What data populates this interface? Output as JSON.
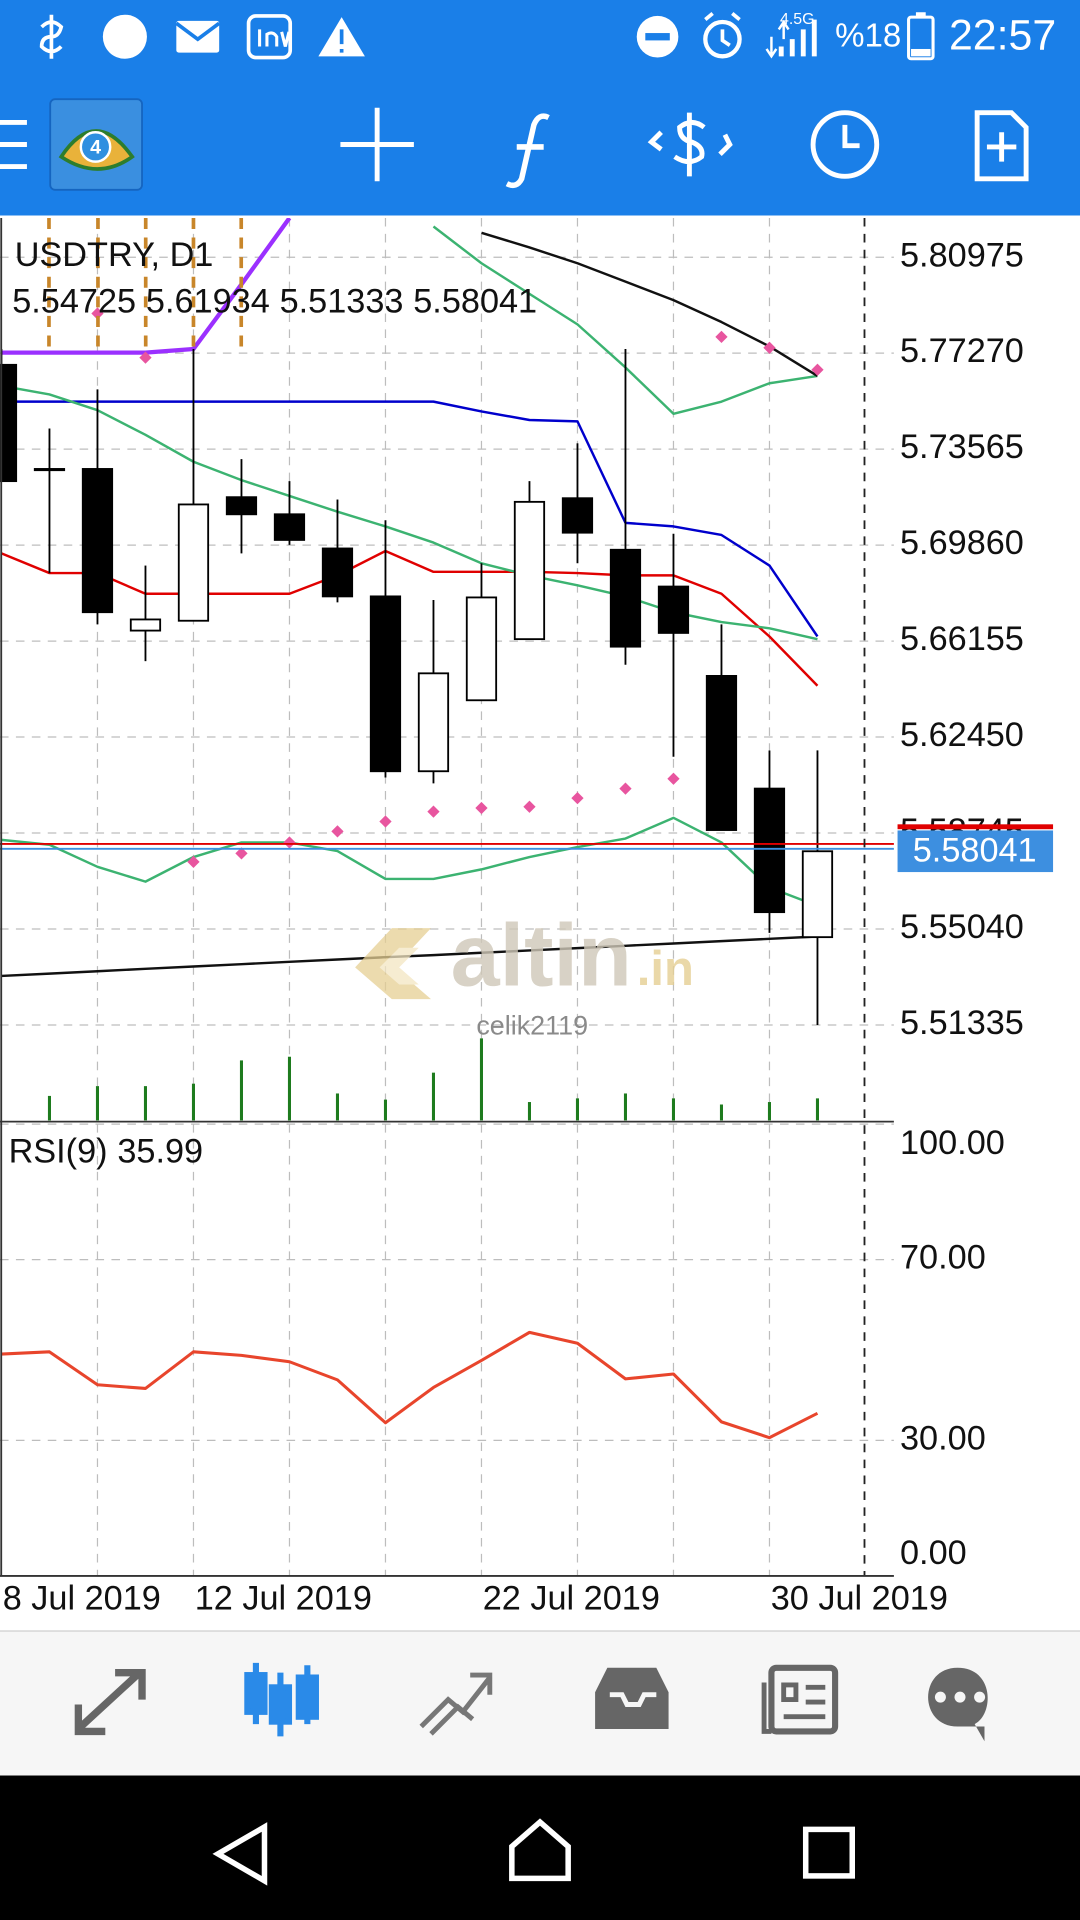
{
  "status_bar": {
    "network": "4.5G",
    "battery": "%18",
    "time": "22:57"
  },
  "app_icon_label": "4",
  "watermark": {
    "brand": "altin",
    "suffix": ".in",
    "user": "celik2119"
  },
  "chart_data": [
    {
      "type": "candlestick",
      "symbol": "USDTRY, D1",
      "categories": [
        "8 Jul 2019",
        null,
        null,
        null,
        "12 Jul 2019",
        null,
        null,
        null,
        null,
        null,
        "22 Jul 2019",
        null,
        null,
        null,
        null,
        null,
        "30 Jul 2019",
        null
      ],
      "open": [
        5.7682,
        5.728,
        5.728,
        5.6656,
        5.6694,
        5.7171,
        5.7105,
        5.6973,
        5.6788,
        5.6113,
        5.6387,
        5.6623,
        5.7167,
        5.6968,
        5.6826,
        5.6481,
        5.6046,
        5.54725
      ],
      "high": [
        5.7743,
        5.7436,
        5.7587,
        5.6907,
        5.7743,
        5.7318,
        5.7233,
        5.7162,
        5.7082,
        5.6774,
        5.6916,
        5.7233,
        5.7379,
        5.7743,
        5.703,
        5.668,
        5.6193,
        5.61934
      ],
      "low": [
        5.7233,
        5.6878,
        5.668,
        5.6538,
        5.6694,
        5.6954,
        5.6987,
        5.6765,
        5.6089,
        5.6066,
        5.6387,
        5.6623,
        5.6916,
        5.6524,
        5.6169,
        5.5886,
        5.5489,
        5.51333
      ],
      "close": [
        5.7233,
        5.728,
        5.6727,
        5.6699,
        5.7143,
        5.7105,
        5.7006,
        5.6788,
        5.6113,
        5.6491,
        5.6784,
        5.7153,
        5.7034,
        5.6594,
        5.6647,
        5.5886,
        5.5569,
        5.58041
      ],
      "bull_color": "#ffffff",
      "bear_color": "#000000",
      "indicators": [
        {
          "color": "#3cb371",
          "values": [
            5.5848,
            5.5829,
            5.5744,
            5.5687,
            5.5782,
            5.5838,
            5.5838,
            5.5805,
            5.5697,
            5.5697,
            5.5734,
            5.5782,
            5.582,
            5.5853,
            5.5933,
            5.5838,
            5.5664,
            5.5593
          ]
        },
        {
          "color": "#111111",
          "values": [
            5.5323,
            5.5332,
            5.5341,
            5.535,
            5.5359,
            5.5368,
            5.5377,
            5.5386,
            5.5395,
            5.5403,
            5.5412,
            5.5421,
            5.543,
            5.5439,
            5.5448,
            5.5457,
            5.5466,
            5.5475
          ]
        },
        {
          "color": "#0000cc",
          "values": [
            5.754,
            5.754,
            5.754,
            5.754,
            5.754,
            5.754,
            5.754,
            5.754,
            5.754,
            5.754,
            5.7502,
            5.7469,
            5.7464,
            5.7072,
            5.7058,
            5.7025,
            5.6907,
            5.6633
          ]
        },
        {
          "color": "#e00000",
          "values": [
            5.6954,
            5.6878,
            5.6878,
            5.6798,
            5.6798,
            5.6798,
            5.6798,
            5.6869,
            5.6963,
            5.6883,
            5.6883,
            5.6883,
            5.6878,
            5.6869,
            5.6869,
            5.6798,
            5.6633,
            5.6443
          ]
        },
        {
          "color": "#3cb371",
          "values": [
            5.7601,
            5.7568,
            5.7507,
            5.7412,
            5.7308,
            5.7237,
            5.7176,
            5.7115,
            5.7058,
            5.6996,
            5.6916,
            5.6869,
            5.6831,
            5.6788,
            5.6727,
            5.6689,
            5.6665,
            5.6623
          ]
        },
        {
          "color": "#3cb371",
          "values": [
            null,
            null,
            null,
            null,
            null,
            null,
            null,
            null,
            null,
            5.8216,
            5.8074,
            5.7956,
            5.7838,
            5.7672,
            5.7493,
            5.754,
            5.7611,
            5.7639
          ]
        },
        {
          "color": "#111111",
          "values": [
            null,
            null,
            null,
            null,
            null,
            null,
            null,
            null,
            null,
            null,
            5.8192,
            5.8135,
            5.8074,
            5.8003,
            5.7932,
            5.7847,
            5.7753,
            5.7639
          ]
        },
        {
          "color": "#9b30ff",
          "values": [
            5.7729,
            5.7729,
            5.7729,
            5.7729,
            5.7743,
            5.7993,
            5.8249,
            null,
            null,
            null,
            null,
            null,
            null,
            null,
            null,
            null,
            null,
            null
          ]
        },
        {
          "color": "#e8559f",
          "style": "dots",
          "values": [
            null,
            null,
            5.788,
            5.771,
            5.5763,
            5.5796,
            5.5838,
            5.5881,
            5.5919,
            5.5957,
            5.5971,
            5.5976,
            5.6009,
            5.6046,
            5.6084,
            5.779,
            5.7748,
            5.7663
          ]
        }
      ],
      "volume": {
        "color": "#1e7b1e",
        "values": [
          null,
          20,
          28,
          28,
          30,
          49,
          52,
          22,
          17,
          39,
          67,
          15,
          18,
          22,
          18,
          13,
          15,
          18
        ]
      },
      "price_label_color": "#3d8fe0",
      "ylim": [
        5.4765,
        5.8249
      ],
      "yticks": [
        5.80975,
        {
          "value": 5.7727,
          "label": "5.77270"
        },
        5.73565,
        {
          "value": 5.6986,
          "label": "5.69860"
        },
        5.66155,
        {
          "value": 5.6245,
          "label": "5.62450"
        },
        5.58745,
        {
          "value": 5.5504,
          "label": "5.55040"
        },
        5.51335
      ],
      "grid": true
    },
    {
      "type": "line",
      "title": "RSI(9)",
      "color": "#e8452c",
      "values": [
        49.1,
        49.6,
        42.3,
        41.5,
        49.6,
        48.8,
        47.4,
        43.4,
        33.9,
        41.7,
        47.7,
        53.9,
        51.5,
        43.6,
        44.7,
        34.1,
        30.6,
        35.99
      ],
      "ylim": [
        0,
        100
      ],
      "yticks": [
        {
          "value": 100,
          "label": "100.00"
        },
        {
          "value": 70,
          "label": "70.00"
        },
        {
          "value": 30,
          "label": "30.00"
        },
        {
          "value": 0,
          "label": "0.00"
        }
      ],
      "grid": true
    }
  ]
}
